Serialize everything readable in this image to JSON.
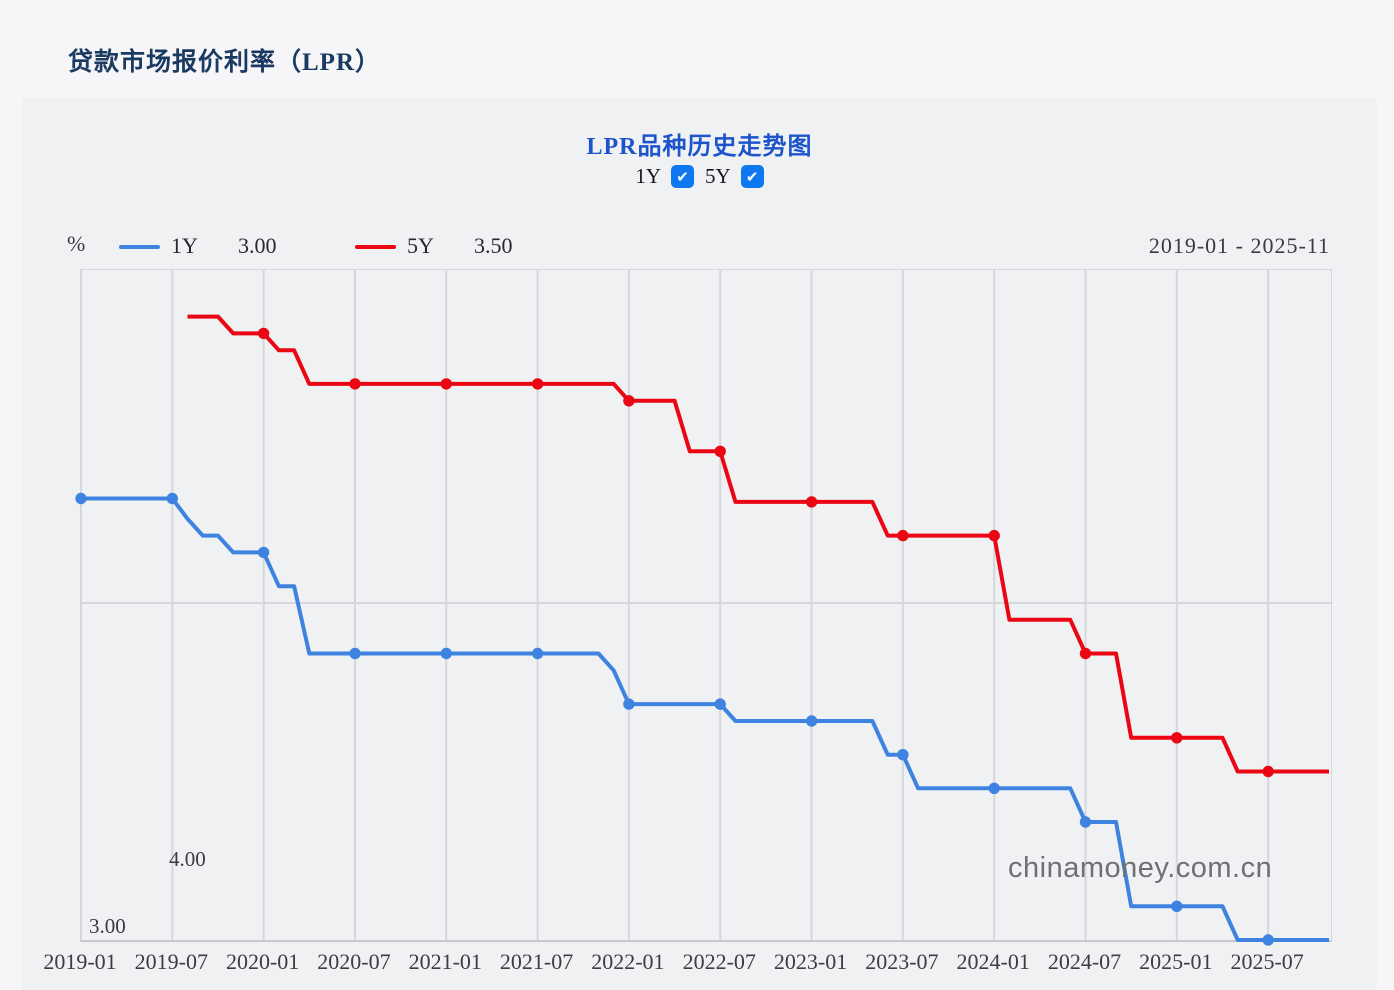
{
  "page": {
    "title": "贷款市场报价利率（LPR）"
  },
  "chart": {
    "title": "LPR品种历史走势图",
    "unit_label": "%",
    "toggles": [
      {
        "label": "1Y",
        "checked": true,
        "check_glyph": "✔"
      },
      {
        "label": "5Y",
        "checked": true,
        "check_glyph": "✔"
      }
    ],
    "legend": [
      {
        "name": "1Y",
        "current_value": "3.00",
        "color": "#3f83e0"
      },
      {
        "name": "5Y",
        "current_value": "3.50",
        "color": "#ea0613"
      }
    ],
    "date_range": "2019-01 - 2025-11",
    "watermark": "chinamoney.com.cn"
  },
  "chart_data": {
    "type": "line",
    "title": "LPR品种历史走势图",
    "ylabel": "%",
    "ylim": [
      3.0,
      5.0
    ],
    "y_gridlines": [
      4.0
    ],
    "y_tick_labels": {
      "v400": "4.00",
      "v300": "3.00"
    },
    "x_start": "2019-01",
    "x_end": "2025-11",
    "x_tick_labels": [
      "2019-01",
      "2019-07",
      "2020-01",
      "2020-07",
      "2021-01",
      "2021-07",
      "2022-01",
      "2022-07",
      "2023-01",
      "2023-07",
      "2024-01",
      "2024-07",
      "2025-01",
      "2025-07"
    ],
    "marker_rule": "dots on January and July data points",
    "line_style": "monthly step line, rate in percent",
    "series": [
      {
        "name": "1Y",
        "color": "#3f83e0",
        "start": "2019-01",
        "end_value": 3.0,
        "step_changes": [
          [
            "2019-01",
            4.31
          ],
          [
            "2019-08",
            4.25
          ],
          [
            "2019-09",
            4.2
          ],
          [
            "2019-11",
            4.15
          ],
          [
            "2020-02",
            4.05
          ],
          [
            "2020-04",
            3.85
          ],
          [
            "2021-12",
            3.8
          ],
          [
            "2022-01",
            3.7
          ],
          [
            "2022-08",
            3.65
          ],
          [
            "2023-06",
            3.55
          ],
          [
            "2023-08",
            3.45
          ],
          [
            "2024-07",
            3.35
          ],
          [
            "2024-10",
            3.1
          ],
          [
            "2025-05",
            3.0
          ]
        ]
      },
      {
        "name": "5Y",
        "color": "#ea0613",
        "start": "2019-08",
        "end_value": 3.5,
        "step_changes": [
          [
            "2019-08",
            4.85
          ],
          [
            "2019-11",
            4.8
          ],
          [
            "2020-02",
            4.75
          ],
          [
            "2020-04",
            4.65
          ],
          [
            "2022-01",
            4.6
          ],
          [
            "2022-05",
            4.45
          ],
          [
            "2022-08",
            4.3
          ],
          [
            "2023-06",
            4.2
          ],
          [
            "2024-02",
            3.95
          ],
          [
            "2024-07",
            3.85
          ],
          [
            "2024-10",
            3.6
          ],
          [
            "2025-05",
            3.5
          ]
        ]
      }
    ]
  }
}
